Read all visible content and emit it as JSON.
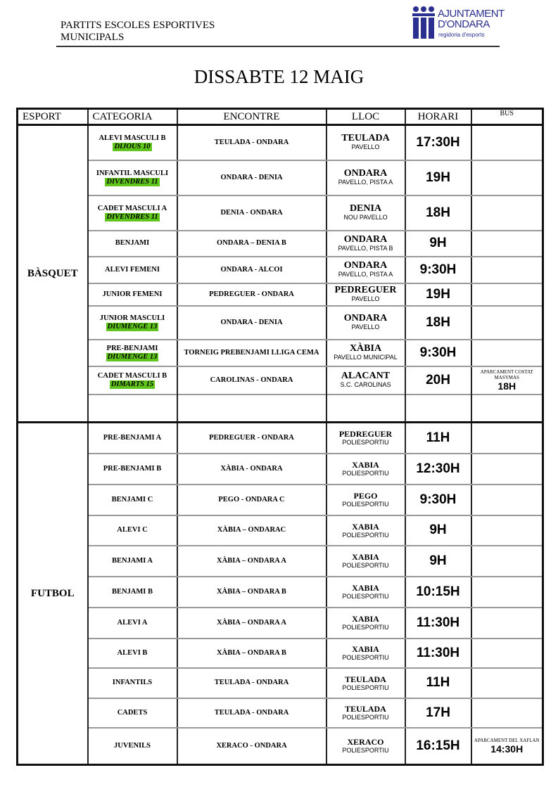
{
  "header": {
    "title_line1": "PARTITS ESCOLES ESPORTIVES",
    "title_line2": "MUNICIPALS",
    "logo_line1": "AJUNTAMENT",
    "logo_line2": "D'ONDARA",
    "logo_sub": "regidoria d'esports",
    "logo_color": "#2b2f8f"
  },
  "day": "DISSABTE 12 MAIG",
  "columns": [
    "ESPORT",
    "CATEGORIA",
    "ENCONTRE",
    "LLOC",
    "HORARI",
    "BUS"
  ],
  "highlight_color": "#5fc41c",
  "basquet": {
    "sport": "BÀSQUET",
    "rows": [
      {
        "cat": "ALEVI MASCULI B",
        "day": "DIJOUS 10",
        "match": "TEULADA - ONDARA",
        "place": "TEULADA",
        "venue": "PAVELLO",
        "time": "17:30H"
      },
      {
        "cat": "INFANTIL MASCULI",
        "day": "DIVENDRES 11",
        "match": "ONDARA - DENIA",
        "place": "ONDARA",
        "venue": "PAVELLO, PISTA  A",
        "time": "19H"
      },
      {
        "cat": "CADET MASCULI A",
        "day": "DIVENDRES 11",
        "match": "DENIA - ONDARA",
        "place": "DENIA",
        "venue": "NOU PAVELLO",
        "time": "18H"
      },
      {
        "cat": "BENJAMI",
        "match": "ONDARA – DENIA B",
        "place": "ONDARA",
        "venue": "PAVELLO, PISTA  B",
        "time": "9H"
      },
      {
        "cat": "ALEVI FEMENI",
        "match": "ONDARA - ALCOI",
        "place": "ONDARA",
        "venue": "PAVELLO, PISTA  A",
        "time": "9:30H"
      },
      {
        "cat": "JUNIOR FEMENI",
        "match": "PEDREGUER - ONDARA",
        "place": "PEDREGUER",
        "venue": "PAVELLO",
        "time": "19H"
      },
      {
        "cat": "JUNIOR MASCULI",
        "day": "DIUMENGE 13",
        "match": "ONDARA - DENIA",
        "place": "ONDARA",
        "venue": "PAVELLO",
        "time": "18H"
      },
      {
        "cat": "PRE-BENJAMI",
        "day": "DIUMENGE 13",
        "match": "TORNEIG PREBENJAMI LLIGA CEMA",
        "place": "XÀBIA",
        "venue": "PAVELLO MUNICIPAL",
        "time": "9:30H"
      },
      {
        "cat": "CADET MASCULI B",
        "day": "DIMARTS 15",
        "match": "CAROLINAS - ONDARA",
        "place": "ALACANT",
        "venue": "S.C. CAROLINAS",
        "time": "20H",
        "bus_note": "APARCAMENT COSTAT MASYMAS",
        "bus_time": "18H"
      }
    ]
  },
  "futbol": {
    "sport": "FUTBOL",
    "rows": [
      {
        "cat": "PRE-BENJAMI  A",
        "match": "PEDREGUER - ONDARA",
        "place": "PEDREGUER",
        "venue": "POLIESPORTIU",
        "time": "11H"
      },
      {
        "cat": "PRE-BENJAMI  B",
        "match": "XÀBIA - ONDARA",
        "place": "XABIA",
        "venue": "POLIESPORTIU",
        "time": "12:30H"
      },
      {
        "cat": "BENJAMI C",
        "match": "PEGO - ONDARA C",
        "place": "PEGO",
        "venue": "POLIESPORTIU",
        "time": "9:30H"
      },
      {
        "cat": "ALEVI C",
        "match": "XÀBIA – ONDARAC",
        "place": "XABIA",
        "venue": "POLIESPORTIU",
        "time": "9H"
      },
      {
        "cat": "BENJAMI A",
        "match": "XÀBIA – ONDARA A",
        "place": "XABIA",
        "venue": "POLIESPORTIU",
        "time": "9H"
      },
      {
        "cat": "BENJAMI B",
        "match": "XÀBIA – ONDARA B",
        "place": "XABIA",
        "venue": "POLIESPORTIU",
        "time": "10:15H"
      },
      {
        "cat": "ALEVI A",
        "match": "XÀBIA – ONDARA A",
        "place": "XABIA",
        "venue": "POLIESPORTIU",
        "time": "11:30H"
      },
      {
        "cat": "ALEVI B",
        "match": "XÀBIA – ONDARA B",
        "place": "XABIA",
        "venue": "POLIESPORTIU",
        "time": "11:30H"
      },
      {
        "cat": "INFANTILS",
        "match": "TEULADA - ONDARA",
        "place": "TEULADA",
        "venue": "POLIESPORTIU",
        "time": "11H"
      },
      {
        "cat": "CADETS",
        "match": "TEULADA - ONDARA",
        "place": "TEULADA",
        "venue": "POLIESPORTIU",
        "time": "17H"
      },
      {
        "cat": "JUVENILS",
        "match": "XERACO - ONDARA",
        "place": "XERACO",
        "venue": "POLIESPORTIU",
        "time": "16:15H",
        "bus_note": "APARCAMENT DEL XAFLAN",
        "bus_time": "14:30H"
      }
    ]
  }
}
